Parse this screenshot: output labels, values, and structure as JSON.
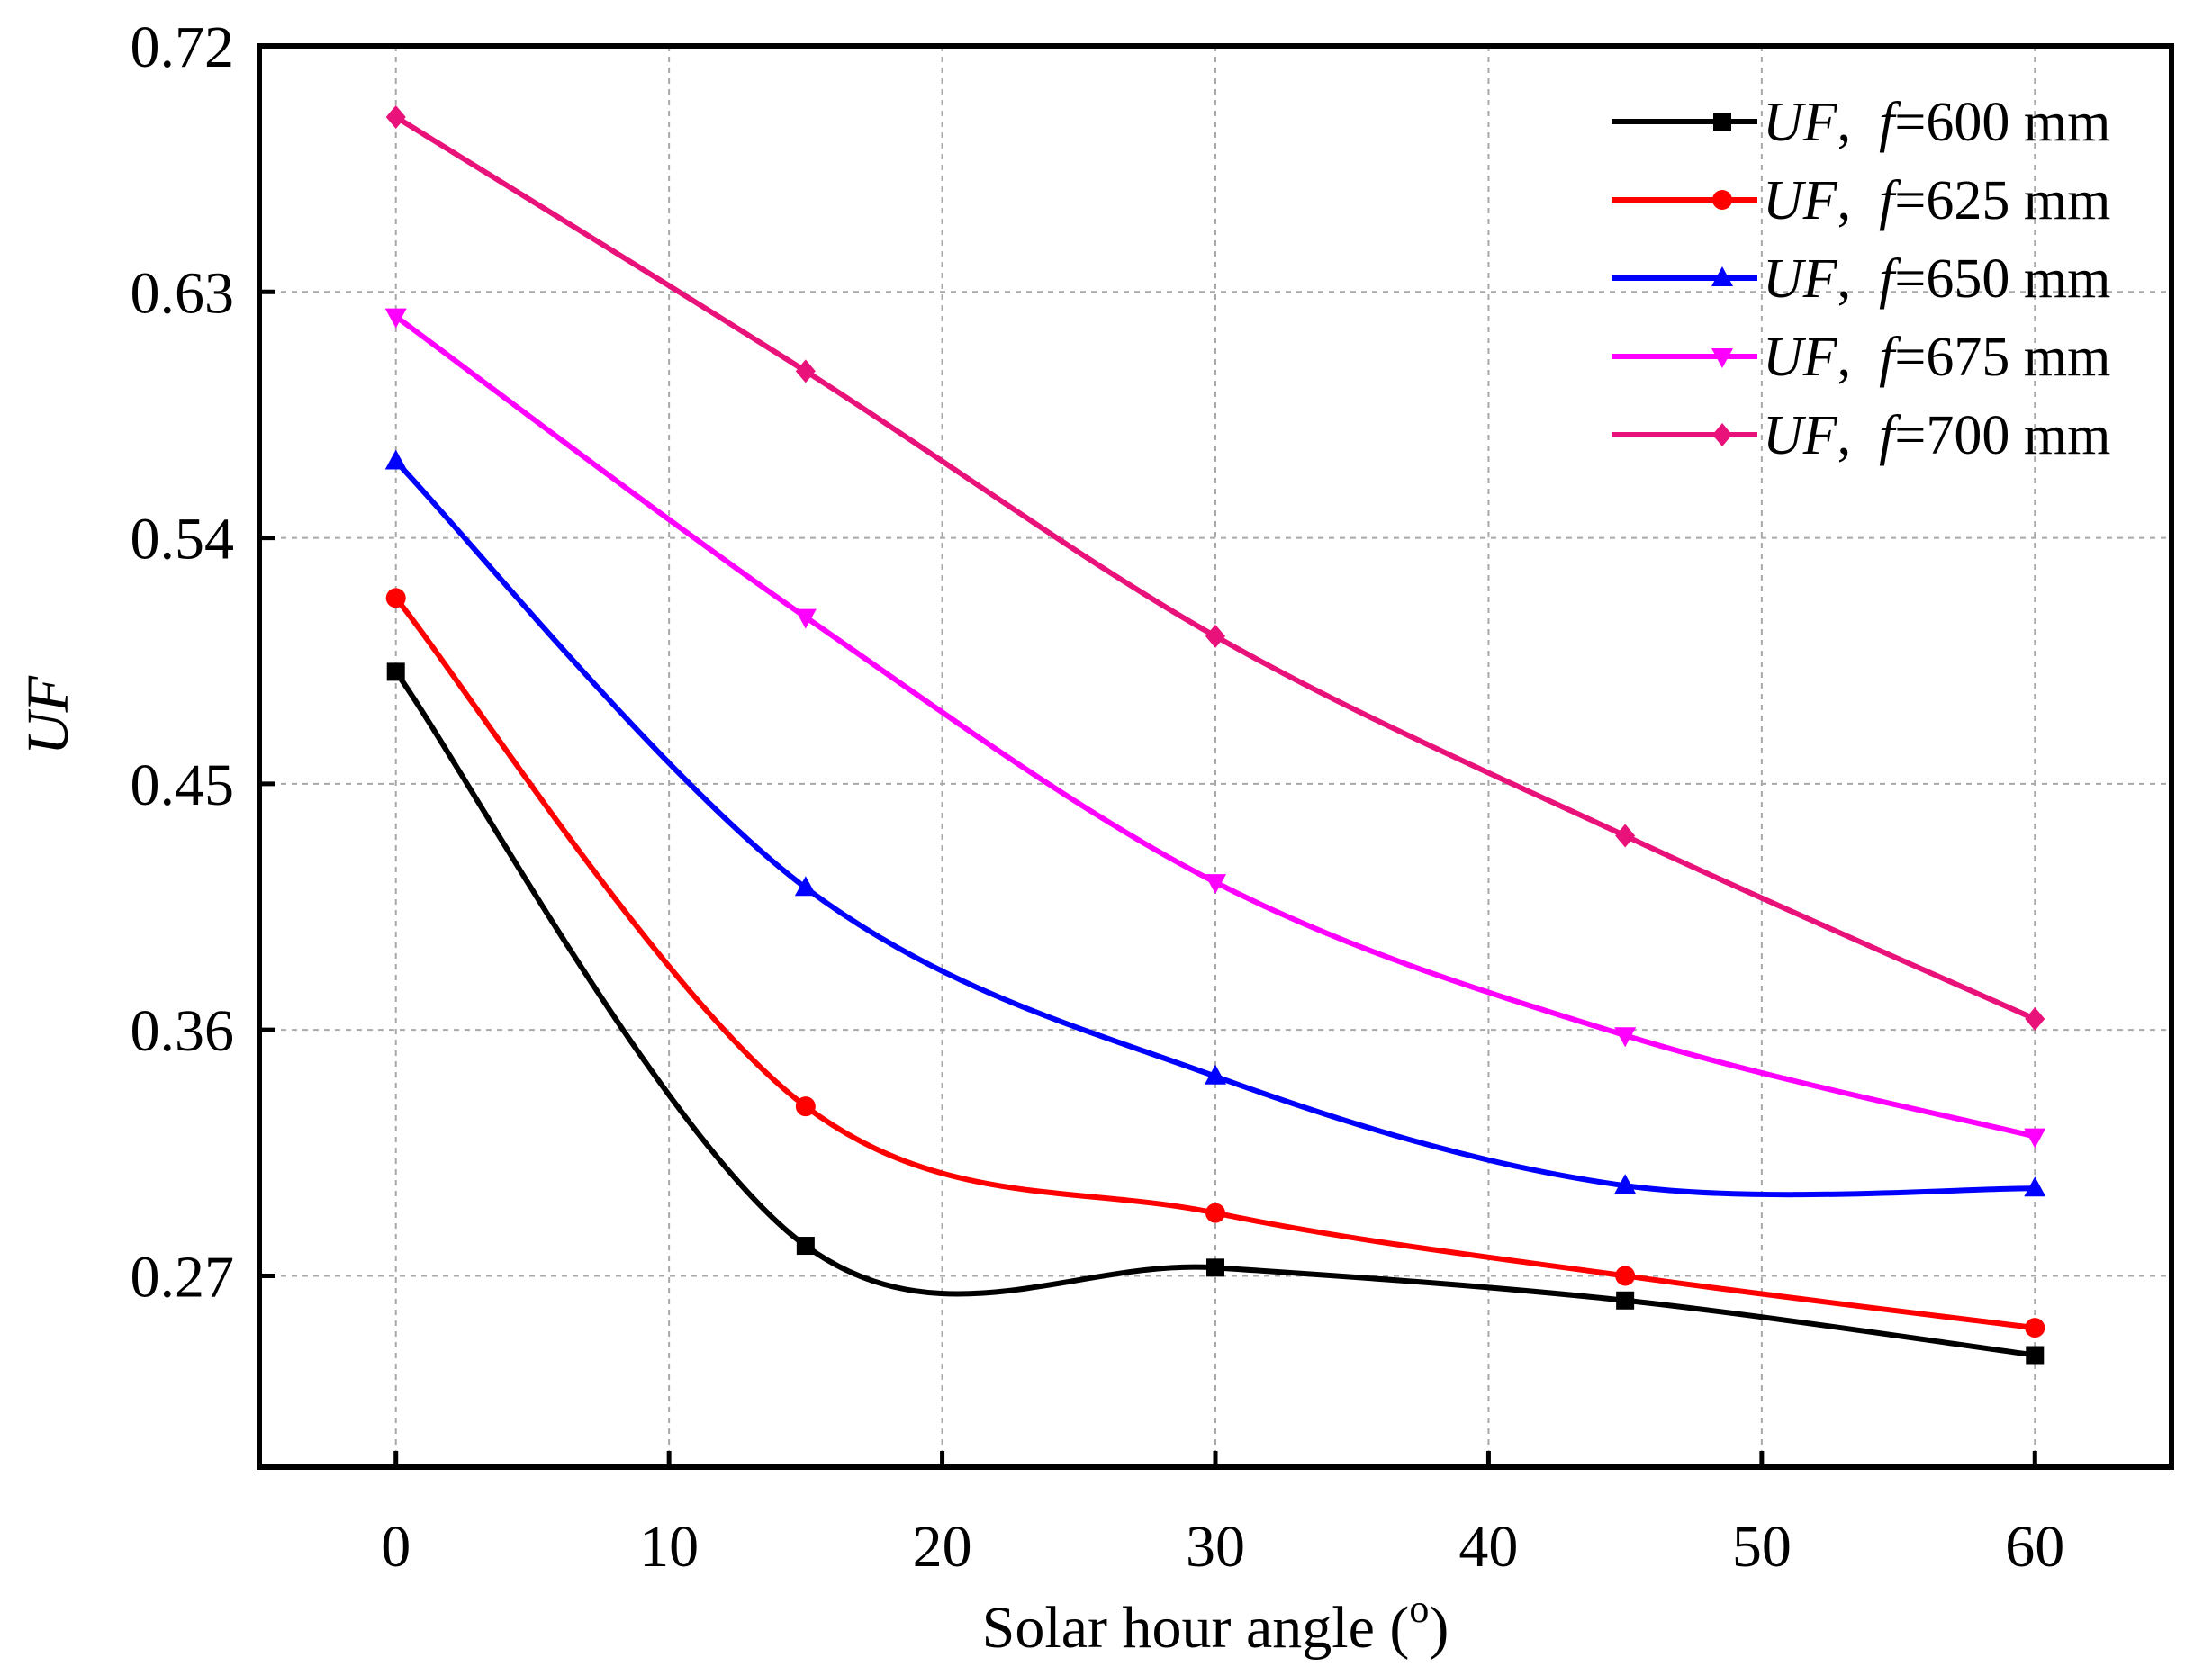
{
  "chart_data": {
    "type": "line",
    "title": "",
    "xlabel": "Solar hour angle",
    "xlabel_unit_open": "(",
    "xlabel_unit_sup": "o",
    "xlabel_unit_close": ")",
    "ylabel": "UF",
    "xlim": [
      -5,
      65
    ],
    "ylim": [
      0.2,
      0.72
    ],
    "xticks": [
      0,
      10,
      20,
      30,
      40,
      50,
      60
    ],
    "yticks": [
      0.27,
      0.36,
      0.45,
      0.54,
      0.63,
      0.72
    ],
    "ytick_labels": [
      "0.27",
      "0.36",
      "0.45",
      "0.54",
      "0.63",
      "0.72"
    ],
    "grid": true,
    "legend_position": "top-right",
    "x": [
      0,
      15,
      30,
      45,
      60
    ],
    "series": [
      {
        "name": "UF,  f=600 mm",
        "legend_var": "UF",
        "legend_sep": ",  ",
        "legend_f": "f",
        "legend_value": "=600 mm",
        "color": "#000000",
        "marker": "square",
        "values": [
          0.491,
          0.281,
          0.273,
          0.261,
          0.241
        ]
      },
      {
        "name": "UF,  f=625 mm",
        "legend_var": "UF",
        "legend_sep": ",  ",
        "legend_f": "f",
        "legend_value": "=625 mm",
        "color": "#ff0000",
        "marker": "circle",
        "values": [
          0.518,
          0.332,
          0.293,
          0.27,
          0.251
        ]
      },
      {
        "name": "UF,  f=650 mm",
        "legend_var": "UF",
        "legend_sep": ",  ",
        "legend_f": "f",
        "legend_value": "=650 mm",
        "color": "#0000ff",
        "marker": "triangle-up",
        "values": [
          0.568,
          0.412,
          0.343,
          0.303,
          0.302
        ]
      },
      {
        "name": "UF,  f=675 mm",
        "legend_var": "UF",
        "legend_sep": ",  ",
        "legend_f": "f",
        "legend_value": "=675 mm",
        "color": "#ff00ff",
        "marker": "triangle-down",
        "values": [
          0.621,
          0.511,
          0.414,
          0.358,
          0.321
        ]
      },
      {
        "name": "UF,  f=700 mm",
        "legend_var": "UF",
        "legend_sep": ",  ",
        "legend_f": "f",
        "legend_value": "=700 mm",
        "color": "#e8127a",
        "marker": "diamond",
        "values": [
          0.694,
          0.601,
          0.504,
          0.431,
          0.364
        ]
      }
    ]
  }
}
